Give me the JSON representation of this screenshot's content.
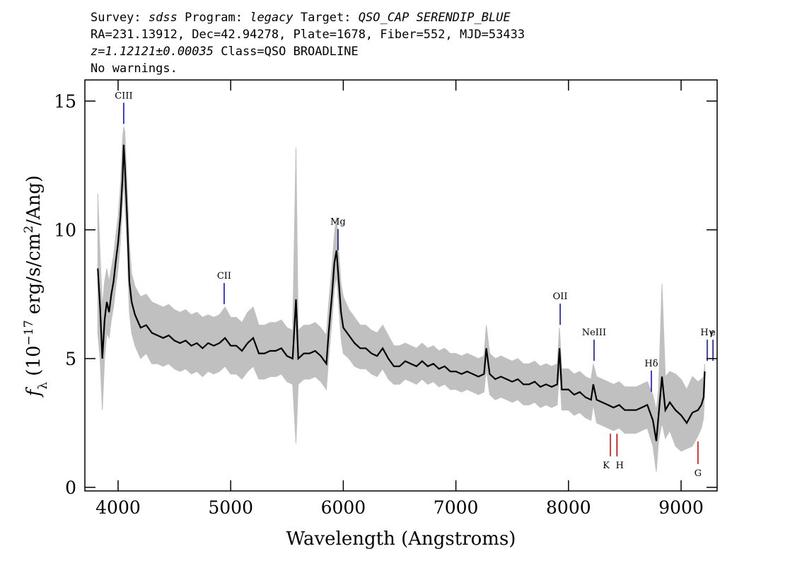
{
  "chart_data": {
    "type": "line",
    "header": [
      [
        {
          "text": "Survey: "
        },
        {
          "text": "sdss",
          "italic": true
        },
        {
          "text": " Program: "
        },
        {
          "text": "legacy",
          "italic": true
        },
        {
          "text": " Target: "
        },
        {
          "text": "QSO_CAP SERENDIP_BLUE",
          "italic": true
        }
      ],
      [
        {
          "text": "RA=231.13912, Dec=42.94278, Plate=1678, Fiber=552, MJD=53433"
        }
      ],
      [
        {
          "text": "z=1.12121±0.00035",
          "italic": true
        },
        {
          "text": " Class=QSO BROADLINE"
        }
      ],
      [
        {
          "text": "No warnings."
        }
      ]
    ],
    "xlabel": "Wavelength (Angstroms)",
    "ylabel": [
      {
        "text": "f",
        "italic": true
      },
      {
        "text": "λ",
        "sub": true
      },
      {
        "text": " (10"
      },
      {
        "text": "−17",
        "sup": true
      },
      {
        "text": " erg/s/cm"
      },
      {
        "text": "2",
        "sup": true
      },
      {
        "text": "/Ang)"
      }
    ],
    "x": [
      3820,
      3840,
      3860,
      3880,
      3900,
      3920,
      3940,
      3960,
      3980,
      4000,
      4020,
      4040,
      4050,
      4060,
      4080,
      4100,
      4120,
      4150,
      4200,
      4250,
      4300,
      4350,
      4400,
      4450,
      4500,
      4550,
      4600,
      4650,
      4700,
      4750,
      4800,
      4850,
      4900,
      4950,
      5000,
      5050,
      5100,
      5150,
      5200,
      5250,
      5300,
      5350,
      5400,
      5450,
      5500,
      5550,
      5580,
      5600,
      5650,
      5700,
      5750,
      5800,
      5850,
      5870,
      5900,
      5920,
      5940,
      5960,
      5980,
      6000,
      6050,
      6100,
      6150,
      6200,
      6250,
      6300,
      6350,
      6400,
      6450,
      6500,
      6550,
      6600,
      6650,
      6700,
      6750,
      6800,
      6850,
      6900,
      6950,
      7000,
      7050,
      7100,
      7150,
      7200,
      7250,
      7270,
      7300,
      7350,
      7400,
      7450,
      7500,
      7550,
      7600,
      7650,
      7700,
      7750,
      7800,
      7850,
      7900,
      7920,
      7940,
      8000,
      8050,
      8100,
      8150,
      8200,
      8220,
      8250,
      8300,
      8350,
      8400,
      8450,
      8500,
      8550,
      8600,
      8650,
      8700,
      8750,
      8780,
      8800,
      8830,
      8860,
      8900,
      8950,
      9000,
      9050,
      9100,
      9150,
      9180,
      9200,
      9210
    ],
    "series": [
      {
        "color": "#000000",
        "values": [
          8.5,
          7.0,
          5.0,
          6.5,
          7.2,
          6.8,
          7.5,
          8.0,
          8.8,
          9.5,
          10.5,
          12.0,
          13.3,
          12.5,
          10.5,
          8.0,
          7.2,
          6.7,
          6.2,
          6.3,
          6.0,
          5.9,
          5.8,
          5.9,
          5.7,
          5.6,
          5.7,
          5.5,
          5.6,
          5.4,
          5.6,
          5.5,
          5.6,
          5.8,
          5.5,
          5.5,
          5.3,
          5.6,
          5.8,
          5.2,
          5.2,
          5.3,
          5.3,
          5.4,
          5.1,
          5.0,
          7.3,
          5.0,
          5.2,
          5.2,
          5.3,
          5.1,
          4.8,
          6.0,
          7.5,
          8.7,
          9.2,
          8.0,
          6.8,
          6.2,
          5.9,
          5.6,
          5.4,
          5.4,
          5.2,
          5.1,
          5.4,
          5.0,
          4.7,
          4.7,
          4.9,
          4.8,
          4.7,
          4.9,
          4.7,
          4.8,
          4.6,
          4.7,
          4.5,
          4.5,
          4.4,
          4.5,
          4.4,
          4.3,
          4.4,
          5.4,
          4.4,
          4.2,
          4.3,
          4.2,
          4.1,
          4.2,
          4.0,
          4.0,
          4.1,
          3.9,
          4.0,
          3.9,
          4.0,
          5.4,
          3.8,
          3.8,
          3.6,
          3.7,
          3.5,
          3.4,
          4.0,
          3.4,
          3.3,
          3.2,
          3.1,
          3.2,
          3.0,
          3.0,
          3.0,
          3.1,
          3.2,
          2.6,
          1.8,
          2.8,
          4.3,
          3.0,
          3.3,
          3.0,
          2.8,
          2.5,
          2.9,
          3.0,
          3.2,
          3.5,
          4.5
        ]
      }
    ],
    "band": {
      "color": "#c0c0c0",
      "lower": [
        6.0,
        5.0,
        3.0,
        5.0,
        6.0,
        5.8,
        6.5,
        7.0,
        7.8,
        8.5,
        9.5,
        11.0,
        12.0,
        11.0,
        9.3,
        6.8,
        6.0,
        5.5,
        5.0,
        5.2,
        4.8,
        4.8,
        4.7,
        4.8,
        4.6,
        4.5,
        4.6,
        4.4,
        4.5,
        4.3,
        4.5,
        4.4,
        4.5,
        4.7,
        4.4,
        4.4,
        4.2,
        4.5,
        4.7,
        4.2,
        4.2,
        4.3,
        4.3,
        4.4,
        4.1,
        4.0,
        1.7,
        4.0,
        4.2,
        4.2,
        4.3,
        4.1,
        3.8,
        5.0,
        6.5,
        7.7,
        8.2,
        7.0,
        5.8,
        5.2,
        5.0,
        4.7,
        4.6,
        4.6,
        4.4,
        4.3,
        4.6,
        4.2,
        4.0,
        4.0,
        4.2,
        4.1,
        4.0,
        4.2,
        4.0,
        4.1,
        3.9,
        4.0,
        3.8,
        3.8,
        3.7,
        3.8,
        3.7,
        3.6,
        3.7,
        4.6,
        3.6,
        3.4,
        3.5,
        3.4,
        3.3,
        3.4,
        3.2,
        3.2,
        3.3,
        3.1,
        3.2,
        3.1,
        3.2,
        4.6,
        3.0,
        3.0,
        2.8,
        2.9,
        2.7,
        2.6,
        3.2,
        2.5,
        2.4,
        2.3,
        2.2,
        2.3,
        2.1,
        2.1,
        2.1,
        2.2,
        2.3,
        1.6,
        0.6,
        1.8,
        2.5,
        1.9,
        2.2,
        1.6,
        1.4,
        1.5,
        1.6,
        2.0,
        2.3,
        2.7,
        3.8
      ],
      "upper": [
        11.4,
        9.0,
        7.0,
        8.0,
        8.5,
        8.0,
        8.5,
        9.0,
        9.8,
        10.5,
        11.7,
        13.5,
        14.0,
        13.8,
        11.8,
        9.5,
        8.3,
        7.8,
        7.4,
        7.5,
        7.2,
        7.1,
        7.0,
        7.1,
        6.9,
        6.8,
        6.9,
        6.7,
        6.8,
        6.6,
        6.7,
        6.6,
        6.7,
        7.0,
        6.6,
        6.6,
        6.4,
        6.8,
        7.0,
        6.3,
        6.3,
        6.4,
        6.4,
        6.5,
        6.2,
        6.1,
        13.2,
        6.1,
        6.3,
        6.3,
        6.4,
        6.2,
        5.9,
        7.1,
        8.6,
        9.8,
        10.5,
        9.1,
        7.9,
        7.4,
        6.9,
        6.6,
        6.3,
        6.3,
        6.1,
        6.0,
        6.3,
        5.9,
        5.5,
        5.5,
        5.6,
        5.5,
        5.4,
        5.6,
        5.4,
        5.5,
        5.3,
        5.4,
        5.2,
        5.2,
        5.1,
        5.2,
        5.1,
        5.0,
        5.1,
        6.3,
        5.2,
        5.0,
        5.1,
        5.0,
        4.9,
        5.0,
        4.8,
        4.8,
        4.9,
        4.7,
        4.8,
        4.7,
        4.8,
        6.2,
        4.6,
        4.6,
        4.4,
        4.5,
        4.3,
        4.2,
        4.8,
        4.3,
        4.2,
        4.1,
        4.0,
        4.1,
        3.9,
        3.9,
        3.9,
        4.0,
        4.1,
        3.6,
        3.0,
        3.8,
        7.9,
        4.3,
        4.5,
        4.4,
        4.2,
        3.8,
        4.3,
        4.1,
        4.2,
        4.3,
        4.8
      ]
    },
    "lines": [
      {
        "x": 4050,
        "label": "CIII",
        "color": "#0000cc",
        "kind": "emission"
      },
      {
        "x": 4942,
        "label": "CII",
        "color": "#0000cc",
        "kind": "emission"
      },
      {
        "x": 5953,
        "label": "Mg",
        "color": "#0000cc",
        "kind": "emission"
      },
      {
        "x": 7926,
        "label": "OII",
        "color": "#0000cc",
        "kind": "emission"
      },
      {
        "x": 8227,
        "label": "NeIII",
        "color": "#0000cc",
        "kind": "emission"
      },
      {
        "x": 8736,
        "label": "Hδ",
        "color": "#0000cc",
        "kind": "emission"
      },
      {
        "x": 9232,
        "label": "Hγ",
        "color": "#0000cc",
        "kind": "emission"
      },
      {
        "x": 9283,
        "label": "e",
        "color": "#0000cc",
        "kind": "emission"
      },
      {
        "x": 8372,
        "label": "K",
        "color": "#cc0000",
        "kind": "absorption"
      },
      {
        "x": 8430,
        "label": "H",
        "color": "#cc0000",
        "kind": "absorption"
      },
      {
        "x": 9150,
        "label": "G",
        "color": "#cc0000",
        "kind": "absorption"
      }
    ],
    "xlim": [
      3705,
      9320
    ],
    "ylim": [
      -0.14,
      15.82
    ],
    "xticks": [
      4000,
      5000,
      6000,
      7000,
      8000,
      9000
    ],
    "yticks": [
      0,
      5,
      10,
      15
    ]
  }
}
